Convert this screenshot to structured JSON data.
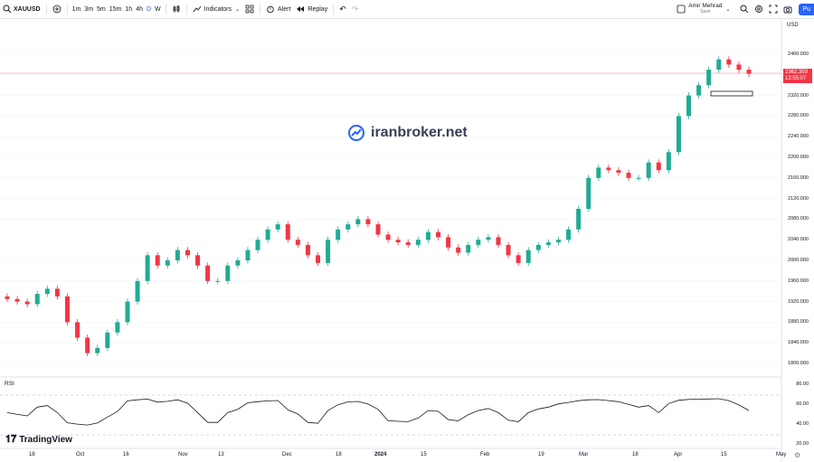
{
  "toolbar": {
    "symbol": "XAUUSD",
    "timeframes": [
      "1m",
      "3m",
      "5m",
      "15m",
      "1h",
      "4h",
      "D",
      "W"
    ],
    "active_timeframe": "D",
    "indicators_label": "Indicators",
    "alert_label": "Alert",
    "replay_label": "Replay",
    "user_name": "Amir Mehrad",
    "save_label": "Save",
    "publish_label": "Pu"
  },
  "watermark": {
    "text": "iranbroker.net"
  },
  "branding": {
    "tv_logo": "TradingView"
  },
  "price_axis": {
    "currency": "USD",
    "labels": [
      "2400.000",
      "2360.000",
      "2320.000",
      "2280.000",
      "2240.000",
      "2200.000",
      "2160.000",
      "2120.000",
      "2080.000",
      "2040.000",
      "2000.000",
      "1960.000",
      "1920.000",
      "1880.000",
      "1840.000",
      "1800.000"
    ],
    "current_price": "2362.350",
    "countdown": "12:55:07"
  },
  "rsi": {
    "label": "RSI",
    "labels": [
      "80.00",
      "60.00",
      "40.00",
      "20.00"
    ]
  },
  "time_axis": {
    "labels": [
      {
        "text": "18",
        "bold": false
      },
      {
        "text": "Oct",
        "bold": false
      },
      {
        "text": "16",
        "bold": false
      },
      {
        "text": "Nov",
        "bold": false
      },
      {
        "text": "13",
        "bold": false
      },
      {
        "text": "Dec",
        "bold": false
      },
      {
        "text": "18",
        "bold": false
      },
      {
        "text": "2024",
        "bold": true
      },
      {
        "text": "15",
        "bold": false
      },
      {
        "text": "Feb",
        "bold": false
      },
      {
        "text": "19",
        "bold": false
      },
      {
        "text": "Mar",
        "bold": false
      },
      {
        "text": "18",
        "bold": false
      },
      {
        "text": "Apr",
        "bold": false
      },
      {
        "text": "15",
        "bold": false
      },
      {
        "text": "May",
        "bold": false
      }
    ]
  },
  "colors": {
    "up": "#22ab94",
    "down": "#f23645",
    "accent": "#2962ff"
  },
  "chart_data": {
    "type": "candlestick",
    "symbol": "XAUUSD",
    "price_scale": [
      1800,
      2400
    ],
    "closes_approx": [
      1925,
      1920,
      1915,
      1935,
      1945,
      1930,
      1880,
      1850,
      1820,
      1830,
      1860,
      1880,
      1920,
      1960,
      2010,
      1990,
      2000,
      2020,
      2010,
      1990,
      1960,
      1960,
      1990,
      2000,
      2020,
      2040,
      2060,
      2070,
      2040,
      2030,
      2010,
      1995,
      2040,
      2060,
      2070,
      2080,
      2070,
      2050,
      2040,
      2035,
      2030,
      2040,
      2055,
      2045,
      2025,
      2015,
      2030,
      2040,
      2045,
      2030,
      2010,
      1995,
      2020,
      2030,
      2035,
      2040,
      2060,
      2100,
      2160,
      2180,
      2175,
      2170,
      2160,
      2160,
      2190,
      2175,
      2210,
      2280,
      2320,
      2340,
      2370,
      2390,
      2380,
      2370,
      2362
    ],
    "rsi_range": [
      0,
      100
    ]
  }
}
